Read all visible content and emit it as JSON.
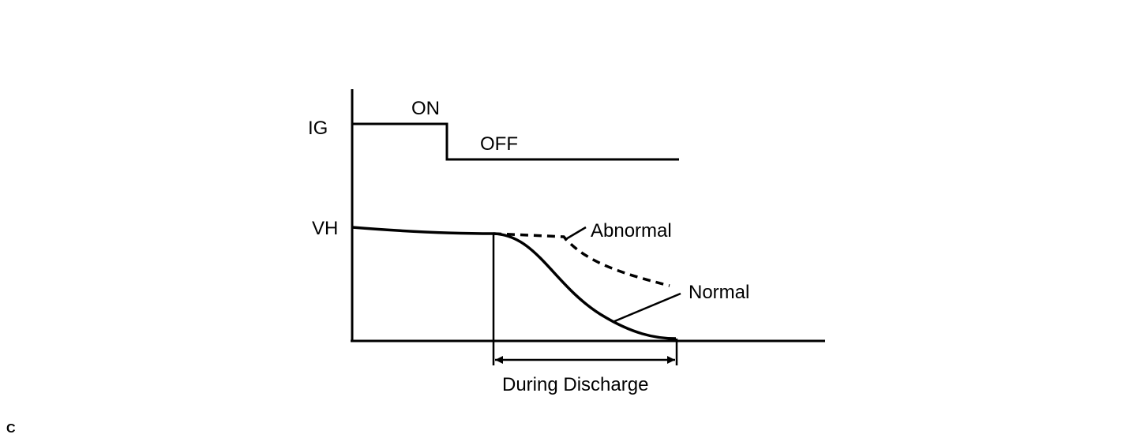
{
  "labels": {
    "ig": "IG",
    "on": "ON",
    "off": "OFF",
    "vh": "VH",
    "abnormal": "Abnormal",
    "normal": "Normal",
    "during_discharge": "During Discharge"
  },
  "figure_code": "C"
}
